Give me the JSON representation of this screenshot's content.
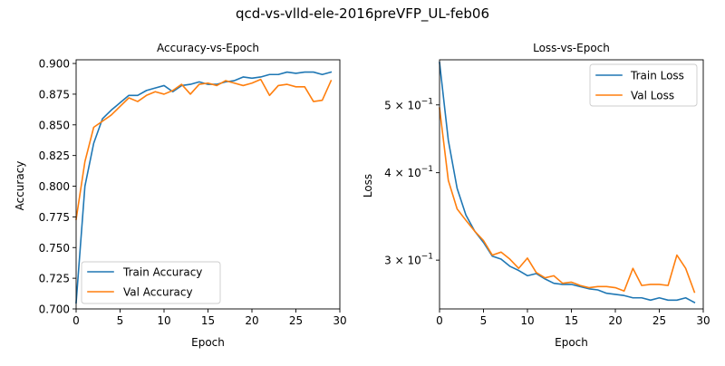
{
  "suptitle": "qcd-vs-vlld-ele-2016preVFP_UL-feb06",
  "chart_data": [
    {
      "type": "line",
      "title": "Accuracy-vs-Epoch",
      "xlabel": "Epoch",
      "ylabel": "Accuracy",
      "xlim": [
        0,
        30
      ],
      "ylim": [
        0.7,
        0.903
      ],
      "xticks": [
        0,
        5,
        10,
        15,
        20,
        25,
        30
      ],
      "xtick_labels": [
        "0",
        "5",
        "10",
        "15",
        "20",
        "25",
        "30"
      ],
      "yticks": [
        0.7,
        0.725,
        0.75,
        0.775,
        0.8,
        0.825,
        0.85,
        0.875,
        0.9
      ],
      "ytick_labels": [
        "0.700",
        "0.725",
        "0.750",
        "0.775",
        "0.800",
        "0.825",
        "0.850",
        "0.875",
        "0.900"
      ],
      "yscale": "linear",
      "grid": false,
      "legend_position": "lower-left",
      "x": [
        0,
        1,
        2,
        3,
        4,
        5,
        6,
        7,
        8,
        9,
        10,
        11,
        12,
        13,
        14,
        15,
        16,
        17,
        18,
        19,
        20,
        21,
        22,
        23,
        24,
        25,
        26,
        27,
        28,
        29
      ],
      "series": [
        {
          "name": "Train Accuracy",
          "color": "#1f77b4",
          "values": [
            0.705,
            0.8,
            0.835,
            0.855,
            0.862,
            0.868,
            0.874,
            0.874,
            0.878,
            0.88,
            0.882,
            0.877,
            0.882,
            0.883,
            0.885,
            0.883,
            0.883,
            0.885,
            0.886,
            0.889,
            0.888,
            0.889,
            0.891,
            0.891,
            0.893,
            0.892,
            0.893,
            0.893,
            0.891,
            0.893
          ]
        },
        {
          "name": "Val Accuracy",
          "color": "#ff7f0e",
          "values": [
            0.773,
            0.82,
            0.848,
            0.853,
            0.858,
            0.865,
            0.872,
            0.869,
            0.874,
            0.877,
            0.875,
            0.878,
            0.883,
            0.875,
            0.883,
            0.884,
            0.882,
            0.886,
            0.884,
            0.882,
            0.884,
            0.887,
            0.874,
            0.882,
            0.883,
            0.881,
            0.881,
            0.869,
            0.87,
            0.886
          ]
        }
      ]
    },
    {
      "type": "line",
      "title": "Loss-vs-Epoch",
      "xlabel": "Epoch",
      "ylabel": "Loss",
      "xlim": [
        0,
        30
      ],
      "ylim": [
        0.2555,
        0.58
      ],
      "xticks": [
        0,
        5,
        10,
        15,
        20,
        25,
        30
      ],
      "xtick_labels": [
        "0",
        "5",
        "10",
        "15",
        "20",
        "25",
        "30"
      ],
      "yscale": "log",
      "yticks": [
        0.3,
        0.4,
        0.5
      ],
      "ytick_labels": [
        {
          "base": "3 × 10",
          "exp": "−1"
        },
        {
          "base": "4 × 10",
          "exp": "−1"
        },
        {
          "base": "5 × 10",
          "exp": "−1"
        }
      ],
      "grid": false,
      "legend_position": "upper-right",
      "x": [
        0,
        1,
        2,
        3,
        4,
        5,
        6,
        7,
        8,
        9,
        10,
        11,
        12,
        13,
        14,
        15,
        16,
        17,
        18,
        19,
        20,
        21,
        22,
        23,
        24,
        25,
        26,
        27,
        28,
        29
      ],
      "series": [
        {
          "name": "Train Loss",
          "color": "#1f77b4",
          "values": [
            0.575,
            0.445,
            0.38,
            0.348,
            0.33,
            0.318,
            0.304,
            0.301,
            0.294,
            0.29,
            0.285,
            0.287,
            0.282,
            0.278,
            0.277,
            0.277,
            0.275,
            0.273,
            0.272,
            0.269,
            0.268,
            0.267,
            0.265,
            0.265,
            0.263,
            0.265,
            0.263,
            0.263,
            0.265,
            0.261
          ]
        },
        {
          "name": "Val Loss",
          "color": "#ff7f0e",
          "values": [
            0.495,
            0.39,
            0.355,
            0.342,
            0.33,
            0.32,
            0.305,
            0.308,
            0.301,
            0.292,
            0.302,
            0.288,
            0.283,
            0.285,
            0.278,
            0.279,
            0.276,
            0.274,
            0.275,
            0.275,
            0.274,
            0.271,
            0.292,
            0.276,
            0.277,
            0.277,
            0.276,
            0.305,
            0.292,
            0.27
          ]
        }
      ]
    }
  ]
}
